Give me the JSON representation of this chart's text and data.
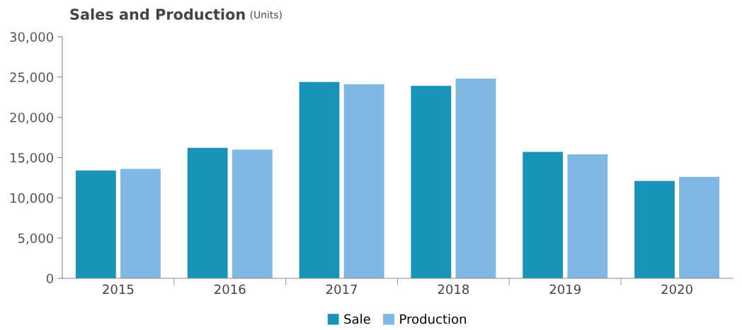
{
  "chart_data": {
    "type": "bar",
    "title": "Sales and Production",
    "subtitle": "(Units)",
    "categories": [
      "2015",
      "2016",
      "2017",
      "2018",
      "2019",
      "2020"
    ],
    "series": [
      {
        "name": "Sale",
        "color": "#1a93b8",
        "values": [
          13400,
          16200,
          24400,
          23900,
          15700,
          12100
        ]
      },
      {
        "name": "Production",
        "color": "#7fb8e3",
        "values": [
          13600,
          16000,
          24100,
          24800,
          15400,
          12600
        ]
      }
    ],
    "ylim": [
      0,
      30000
    ],
    "yticks": [
      {
        "value": 0,
        "label": "0"
      },
      {
        "value": 5000,
        "label": "5,000"
      },
      {
        "value": 10000,
        "label": "10,000"
      },
      {
        "value": 15000,
        "label": "15,000"
      },
      {
        "value": 20000,
        "label": "20,000"
      },
      {
        "value": 25000,
        "label": "25,000"
      },
      {
        "value": 30000,
        "label": "30,000"
      }
    ],
    "grid": false,
    "legend": "bottom"
  }
}
